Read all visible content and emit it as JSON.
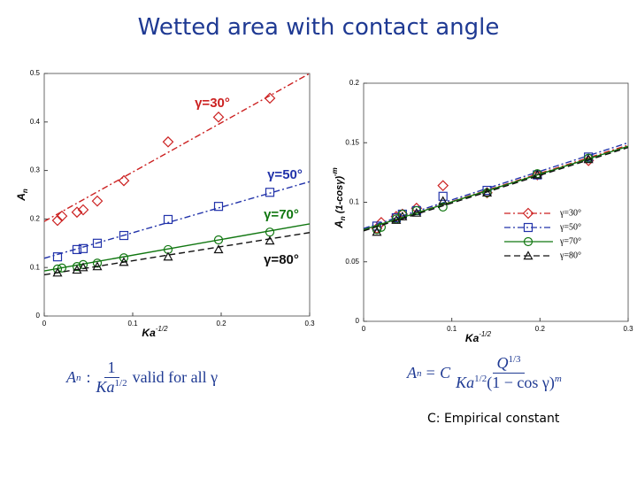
{
  "title": "Wetted area with contact angle",
  "chart_data": [
    {
      "type": "scatter",
      "ylabel": "A",
      "ylabel_sub": "n",
      "xlabel": "Ka",
      "xlabel_sup": "-1/2",
      "xlim": [
        0,
        0.3
      ],
      "xticks": [
        0,
        0.1,
        0.2,
        0.3
      ],
      "ylim": [
        0,
        0.5
      ],
      "yticks": [
        0,
        0.1,
        0.2,
        0.3,
        0.4,
        0.5
      ],
      "series": [
        {
          "name": "γ=30°",
          "color": "#cc2222",
          "marker": "diamond",
          "dash": "dashdot",
          "x": [
            0.015,
            0.02,
            0.037,
            0.044,
            0.06,
            0.09,
            0.14,
            0.197,
            0.255
          ],
          "values": [
            0.197,
            0.206,
            0.214,
            0.219,
            0.237,
            0.279,
            0.359,
            0.41,
            0.449
          ],
          "fit_x": [
            0,
            0.3
          ],
          "fit": [
            0.195,
            0.5
          ]
        },
        {
          "name": "γ=50°",
          "color": "#2233aa",
          "marker": "square",
          "dash": "dashdot",
          "x": [
            0.015,
            0.037,
            0.044,
            0.06,
            0.09,
            0.14,
            0.197,
            0.255
          ],
          "values": [
            0.122,
            0.137,
            0.139,
            0.15,
            0.166,
            0.199,
            0.226,
            0.255
          ],
          "fit_x": [
            0,
            0.3
          ],
          "fit": [
            0.119,
            0.277
          ]
        },
        {
          "name": "γ=70°",
          "color": "#117711",
          "marker": "circle",
          "dash": "solid",
          "x": [
            0.015,
            0.02,
            0.037,
            0.044,
            0.06,
            0.09,
            0.14,
            0.197,
            0.255
          ],
          "values": [
            0.097,
            0.099,
            0.102,
            0.106,
            0.109,
            0.12,
            0.137,
            0.157,
            0.173
          ],
          "fit_x": [
            0,
            0.3
          ],
          "fit": [
            0.093,
            0.19
          ]
        },
        {
          "name": "γ=80°",
          "color": "#111111",
          "marker": "triangle",
          "dash": "dashed",
          "x": [
            0.015,
            0.037,
            0.044,
            0.06,
            0.09,
            0.14,
            0.197,
            0.255
          ],
          "values": [
            0.089,
            0.095,
            0.1,
            0.102,
            0.111,
            0.122,
            0.137,
            0.155
          ],
          "fit_x": [
            0,
            0.3
          ],
          "fit": [
            0.085,
            0.172
          ]
        }
      ],
      "legend": "none"
    },
    {
      "type": "scatter",
      "ylabel": "A",
      "ylabel_sub": "n",
      "ylabel_tail": " (1-cosγ)",
      "ylabel_sup": "-m",
      "xlabel": "Ka",
      "xlabel_sup": "-1/2",
      "xlim": [
        0,
        0.3
      ],
      "xticks": [
        0,
        0.1,
        0.2,
        0.3
      ],
      "ylim": [
        0,
        0.2
      ],
      "yticks": [
        0,
        0.05,
        0.1,
        0.15,
        0.2
      ],
      "series": [
        {
          "name": "γ=30°",
          "color": "#cc2222",
          "marker": "diamond",
          "dash": "dashdot",
          "x": [
            0.015,
            0.02,
            0.037,
            0.044,
            0.06,
            0.09,
            0.14,
            0.197,
            0.255
          ],
          "values": [
            0.078,
            0.083,
            0.088,
            0.09,
            0.095,
            0.114,
            0.108,
            0.123,
            0.135
          ],
          "fit_x": [
            0,
            0.3
          ],
          "fit": [
            0.077,
            0.148
          ]
        },
        {
          "name": "γ=50°",
          "color": "#2233aa",
          "marker": "square",
          "dash": "dashdot",
          "x": [
            0.015,
            0.037,
            0.044,
            0.06,
            0.09,
            0.14,
            0.197,
            0.255
          ],
          "values": [
            0.08,
            0.087,
            0.09,
            0.093,
            0.105,
            0.11,
            0.123,
            0.138
          ],
          "fit_x": [
            0,
            0.3
          ],
          "fit": [
            0.078,
            0.15
          ]
        },
        {
          "name": "γ=70°",
          "color": "#117711",
          "marker": "circle",
          "dash": "solid",
          "x": [
            0.015,
            0.02,
            0.037,
            0.044,
            0.06,
            0.09,
            0.14,
            0.197,
            0.255
          ],
          "values": [
            0.077,
            0.079,
            0.086,
            0.09,
            0.093,
            0.096,
            0.108,
            0.124,
            0.137
          ],
          "fit_x": [
            0,
            0.3
          ],
          "fit": [
            0.077,
            0.147
          ]
        },
        {
          "name": "γ=80°",
          "color": "#111111",
          "marker": "triangle",
          "dash": "dashed",
          "x": [
            0.015,
            0.037,
            0.044,
            0.06,
            0.09,
            0.14,
            0.197,
            0.255
          ],
          "values": [
            0.075,
            0.085,
            0.088,
            0.091,
            0.101,
            0.108,
            0.123,
            0.136
          ],
          "fit_x": [
            0,
            0.3
          ],
          "fit": [
            0.076,
            0.146
          ]
        }
      ],
      "legend": "lower right"
    }
  ],
  "equations": {
    "left": {
      "lhs": "A",
      "lhs_sub": "n",
      "sep": ":",
      "num": "1",
      "den": "Ka",
      "den_sup": "1/2",
      "tail": "valid for all γ"
    },
    "right": {
      "lhs": "A",
      "lhs_sub": "n",
      "sep": "= C",
      "num": "Q",
      "num_sup": "1/3",
      "den": "Ka",
      "den_sup": "1/2",
      "den_tail": "(1 − cos γ)",
      "den_tail_sup": "m"
    }
  },
  "note": "C: Empirical constant"
}
